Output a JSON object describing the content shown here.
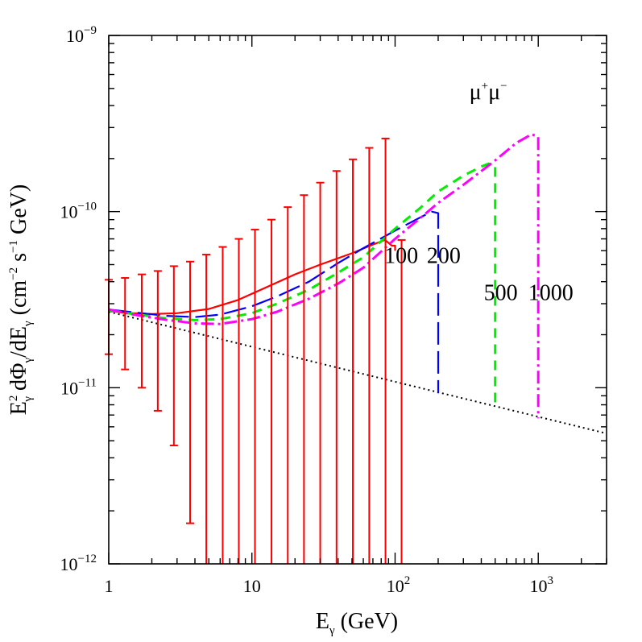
{
  "chart_data": {
    "type": "line",
    "xscale": "log",
    "yscale": "log",
    "xlim": [
      1,
      3000
    ],
    "ylim": [
      1e-12,
      1e-09
    ],
    "xlabel": {
      "main": "E",
      "sub": "γ",
      "tail": " (GeV)"
    },
    "ylabel": {
      "p1": "E",
      "p1_sup": "2",
      "p1_sub": "γ",
      "p2": " dΦ",
      "p2_sub": "γ",
      "p3": "/dE",
      "p3_sub": "γ",
      "p4": " (cm",
      "p4_sup": "−2",
      "p5": " s",
      "p5_sup": "−1",
      "p6": " GeV)"
    },
    "x_ticks": [
      {
        "value": 1,
        "base": "1",
        "exp": ""
      },
      {
        "value": 10,
        "base": "10",
        "exp": ""
      },
      {
        "value": 100,
        "base": "10",
        "exp": "2"
      },
      {
        "value": 1000,
        "base": "10",
        "exp": "3"
      }
    ],
    "y_ticks": [
      {
        "value": 1e-12,
        "base": "10",
        "exp": "−12"
      },
      {
        "value": 1e-11,
        "base": "10",
        "exp": "−11"
      },
      {
        "value": 1e-10,
        "base": "10",
        "exp": "−10"
      },
      {
        "value": 1e-09,
        "base": "10",
        "exp": "−9"
      }
    ],
    "annotations": [
      {
        "text": "100",
        "x": 91,
        "y": 5.1e-11
      },
      {
        "text": "200",
        "x": 180,
        "y": 5.1e-11
      },
      {
        "text": "500",
        "x": 450,
        "y": 3.15e-11
      },
      {
        "text": "1000",
        "x": 920,
        "y": 3.15e-11
      }
    ],
    "channel_label": {
      "mu1": "μ",
      "sup1": "+",
      "mu2": "μ",
      "sup2": "−",
      "x": 330,
      "y": 4.35e-10
    },
    "background": {
      "name": "",
      "color": "#000000",
      "dash": "2,4",
      "points": [
        [
          1,
          2.7e-11
        ],
        [
          3000,
          5.5e-12
        ]
      ]
    },
    "series": [
      {
        "color": "#ff0000",
        "dash": "",
        "width": 2.2,
        "points": [
          [
            1,
            2.72e-11
          ],
          [
            1.3,
            2.66e-11
          ],
          [
            2,
            2.62e-11
          ],
          [
            3,
            2.65e-11
          ],
          [
            5,
            2.8e-11
          ],
          [
            8,
            3.15e-11
          ],
          [
            12,
            3.65e-11
          ],
          [
            20,
            4.4e-11
          ],
          [
            30,
            5e-11
          ],
          [
            50,
            5.8e-11
          ],
          [
            70,
            6.5e-11
          ],
          [
            85,
            6.9e-11
          ],
          [
            95,
            6.4e-11
          ],
          [
            100,
            6.4e-11
          ],
          [
            100,
            6e-11
          ]
        ]
      },
      {
        "color": "#0000ff",
        "dash": "28,8",
        "width": 2.2,
        "points": [
          [
            1,
            2.78e-11
          ],
          [
            1.5,
            2.68e-11
          ],
          [
            2.5,
            2.56e-11
          ],
          [
            4,
            2.52e-11
          ],
          [
            6,
            2.6e-11
          ],
          [
            10,
            2.9e-11
          ],
          [
            15,
            3.3e-11
          ],
          [
            25,
            4e-11
          ],
          [
            40,
            5.1e-11
          ],
          [
            60,
            6.2e-11
          ],
          [
            100,
            7.8e-11
          ],
          [
            140,
            9e-11
          ],
          [
            180,
            1e-10
          ],
          [
            200,
            9.8e-11
          ],
          [
            200,
            9.3e-12
          ]
        ]
      },
      {
        "color": "#00ee00",
        "dash": "12,8",
        "width": 3,
        "points": [
          [
            1,
            2.75e-11
          ],
          [
            1.5,
            2.62e-11
          ],
          [
            2.5,
            2.48e-11
          ],
          [
            4,
            2.42e-11
          ],
          [
            6,
            2.45e-11
          ],
          [
            10,
            2.65e-11
          ],
          [
            15,
            3e-11
          ],
          [
            25,
            3.6e-11
          ],
          [
            40,
            4.5e-11
          ],
          [
            60,
            5.5e-11
          ],
          [
            100,
            8e-11
          ],
          [
            150,
            1.05e-10
          ],
          [
            200,
            1.3e-10
          ],
          [
            300,
            1.6e-10
          ],
          [
            400,
            1.8e-10
          ],
          [
            450,
            1.87e-10
          ],
          [
            500,
            1.82e-10
          ],
          [
            500,
            7.9e-12
          ]
        ]
      },
      {
        "color": "#ff00ff",
        "dash": "16,5,3,5",
        "width": 3,
        "points": [
          [
            1,
            2.78e-11
          ],
          [
            1.5,
            2.6e-11
          ],
          [
            2.5,
            2.43e-11
          ],
          [
            4,
            2.32e-11
          ],
          [
            6,
            2.3e-11
          ],
          [
            10,
            2.45e-11
          ],
          [
            15,
            2.7e-11
          ],
          [
            25,
            3.2e-11
          ],
          [
            40,
            3.9e-11
          ],
          [
            60,
            4.8e-11
          ],
          [
            100,
            7e-11
          ],
          [
            150,
            9.2e-11
          ],
          [
            200,
            1.12e-10
          ],
          [
            300,
            1.42e-10
          ],
          [
            500,
            1.95e-10
          ],
          [
            700,
            2.45e-10
          ],
          [
            900,
            2.75e-10
          ],
          [
            1000,
            2.65e-10
          ],
          [
            1000,
            6.7e-12
          ]
        ]
      }
    ],
    "error_bars": {
      "color": "#ff0000",
      "points": [
        {
          "x": 1.0,
          "y": 2.7e-11,
          "lo": 1.55e-11,
          "hi": 4.1e-11
        },
        {
          "x": 1.3,
          "y": 2.72e-11,
          "lo": 1.27e-11,
          "hi": 4.2e-11
        },
        {
          "x": 1.7,
          "y": 2.75e-11,
          "lo": 1e-11,
          "hi": 4.4e-11
        },
        {
          "x": 2.2,
          "y": 2.8e-11,
          "lo": 7.4e-12,
          "hi": 4.6e-11
        },
        {
          "x": 2.85,
          "y": 2.85e-11,
          "lo": 4.7e-12,
          "hi": 4.9e-11
        },
        {
          "x": 3.7,
          "y": 2.9e-11,
          "lo": 1.7e-12,
          "hi": 5.2e-11
        },
        {
          "x": 4.8,
          "y": 3e-11,
          "lo": 1e-12,
          "hi": 5.7e-11
        },
        {
          "x": 6.25,
          "y": 3.1e-11,
          "lo": 1e-12,
          "hi": 6.3e-11
        },
        {
          "x": 8.1,
          "y": 3.2e-11,
          "lo": 1e-12,
          "hi": 7e-11
        },
        {
          "x": 10.5,
          "y": 3.4e-11,
          "lo": 1e-12,
          "hi": 7.9e-11
        },
        {
          "x": 13.7,
          "y": 3.6e-11,
          "lo": 1e-12,
          "hi": 9e-11
        },
        {
          "x": 17.8,
          "y": 3.9e-11,
          "lo": 1e-12,
          "hi": 1.06e-10
        },
        {
          "x": 23.1,
          "y": 4.2e-11,
          "lo": 1e-12,
          "hi": 1.24e-10
        },
        {
          "x": 30.0,
          "y": 4.6e-11,
          "lo": 1e-12,
          "hi": 1.46e-10
        },
        {
          "x": 39.0,
          "y": 5e-11,
          "lo": 1e-12,
          "hi": 1.7e-10
        },
        {
          "x": 50.7,
          "y": 5.5e-11,
          "lo": 1e-12,
          "hi": 1.98e-10
        },
        {
          "x": 66.0,
          "y": 6e-11,
          "lo": 1e-12,
          "hi": 2.3e-10
        },
        {
          "x": 85.7,
          "y": 6.5e-11,
          "lo": 1e-12,
          "hi": 2.6e-10
        },
        {
          "x": 111.0,
          "y": 6e-11,
          "lo": 1e-12,
          "hi": 6.9e-11
        }
      ]
    }
  }
}
